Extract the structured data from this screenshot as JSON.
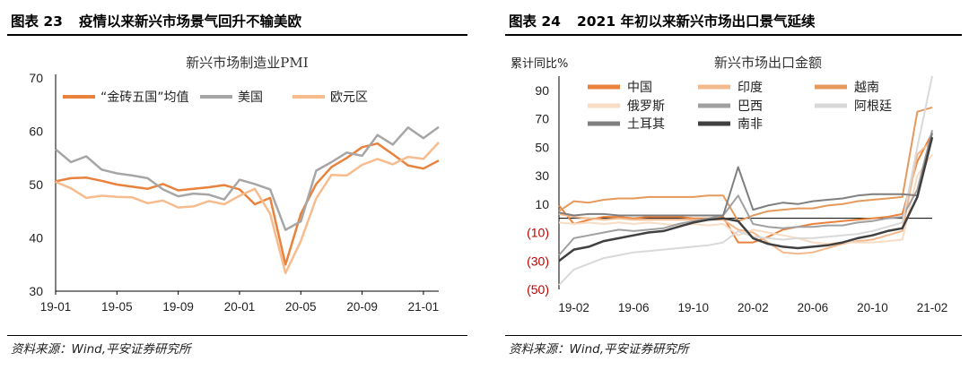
{
  "left": {
    "figure_no": "图表 23",
    "figure_title": "疫情以来新兴市场景气回升不输美欧",
    "source": "资料来源：Wind,平安证券研究所"
  },
  "right": {
    "figure_no": "图表 24",
    "figure_title": "2021 年初以来新兴市场出口景气延续",
    "source": "资料来源：Wind,平安证券研究所"
  },
  "chart_data": [
    {
      "type": "line",
      "title": "新兴市场制造业PMI",
      "ylim": [
        30,
        70
      ],
      "yticks": [
        "30",
        "40",
        "50",
        "60",
        "70"
      ],
      "xticks": [
        "19-01",
        "19-05",
        "19-09",
        "20-01",
        "20-05",
        "20-09",
        "21-01"
      ],
      "x": [
        "19-01",
        "19-02",
        "19-03",
        "19-04",
        "19-05",
        "19-06",
        "19-07",
        "19-08",
        "19-09",
        "19-10",
        "19-11",
        "19-12",
        "20-01",
        "20-02",
        "20-03",
        "20-04",
        "20-05",
        "20-06",
        "20-07",
        "20-08",
        "20-09",
        "20-10",
        "20-11",
        "20-12",
        "21-01",
        "21-02"
      ],
      "legend": "top",
      "series": [
        {
          "name": "“金砖五国”均值",
          "color": "#e8823c",
          "width": 2.5,
          "values": [
            50.6,
            51.2,
            51.3,
            50.7,
            50.0,
            49.6,
            49.2,
            50.1,
            48.9,
            49.2,
            49.5,
            49.9,
            49.1,
            46.3,
            47.5,
            35.0,
            44.5,
            50.1,
            53.3,
            55.0,
            57.0,
            57.7,
            55.7,
            53.6,
            53.0,
            54.5
          ]
        },
        {
          "name": "美国",
          "color": "#a6a6a6",
          "width": 2.5,
          "values": [
            56.6,
            54.2,
            55.3,
            52.8,
            52.1,
            51.7,
            51.2,
            49.1,
            47.8,
            48.3,
            48.1,
            47.2,
            50.9,
            50.1,
            49.1,
            41.5,
            43.1,
            52.6,
            54.2,
            56.0,
            55.4,
            59.3,
            57.5,
            60.7,
            58.7,
            60.8
          ]
        },
        {
          "name": "欧元区",
          "color": "#f7bc8e",
          "width": 2.5,
          "values": [
            50.5,
            49.3,
            47.5,
            47.9,
            47.7,
            47.6,
            46.5,
            47.0,
            45.7,
            45.9,
            46.9,
            46.3,
            47.9,
            49.2,
            44.5,
            33.4,
            39.4,
            47.4,
            51.8,
            51.7,
            53.7,
            54.8,
            53.8,
            55.2,
            54.8,
            57.9
          ]
        }
      ]
    },
    {
      "type": "line",
      "title": "新兴市场出口金额",
      "ylabel": "累计同比%",
      "ylim": [
        -50,
        100
      ],
      "yticks": [
        "(50)",
        "(30)",
        "(10)",
        "10",
        "30",
        "50",
        "70",
        "90"
      ],
      "ytick_values": [
        -50,
        -30,
        -10,
        10,
        30,
        50,
        70,
        90
      ],
      "negative_tick_color": "#c00000",
      "xticks": [
        "19-02",
        "19-06",
        "19-10",
        "20-02",
        "20-06",
        "20-10",
        "21-02"
      ],
      "x": [
        "19-01",
        "19-02",
        "19-03",
        "19-04",
        "19-05",
        "19-06",
        "19-07",
        "19-08",
        "19-09",
        "19-10",
        "19-11",
        "19-12",
        "20-01",
        "20-02",
        "20-03",
        "20-04",
        "20-05",
        "20-06",
        "20-07",
        "20-08",
        "20-09",
        "20-10",
        "20-11",
        "20-12",
        "21-01",
        "21-02"
      ],
      "legend": "top",
      "series": [
        {
          "name": "中国",
          "color": "#e8823c",
          "width": 2,
          "values": [
            9,
            -4,
            -1,
            1,
            1,
            0,
            1,
            1,
            1,
            0,
            0,
            1,
            -17,
            -17,
            -13,
            -8,
            -6,
            -4,
            -3,
            -2,
            -1,
            0,
            1,
            3,
            40,
            60
          ]
        },
        {
          "name": "印度",
          "color": "#f3b98d",
          "width": 2,
          "values": [
            3,
            1,
            0,
            -1,
            0,
            -1,
            -1,
            -1,
            -1,
            -1,
            -1,
            -1,
            -8,
            -10,
            -17,
            -24,
            -25,
            -24,
            -21,
            -18,
            -16,
            -15,
            -12,
            -9,
            45,
            55
          ]
        },
        {
          "name": "越南",
          "color": "#e59a5b",
          "width": 2,
          "values": [
            5,
            12,
            11,
            13,
            14,
            14,
            15,
            15,
            15,
            15,
            16,
            16,
            -2,
            2,
            5,
            6,
            7,
            7,
            9,
            10,
            12,
            13,
            14,
            15,
            75,
            78
          ]
        },
        {
          "name": "俄罗斯",
          "color": "#f8dcc4",
          "width": 2,
          "values": [
            -3,
            -4,
            -3,
            -4,
            -3,
            -4,
            -3,
            -4,
            -5,
            -4,
            -5,
            -4,
            -12,
            -8,
            -10,
            -12,
            -14,
            -17,
            -18,
            -17,
            -17,
            -17,
            -16,
            -15,
            30,
            45
          ]
        },
        {
          "name": "巴西",
          "color": "#a0a0a0",
          "width": 2,
          "values": [
            -26,
            -14,
            -12,
            -10,
            -8,
            -9,
            -8,
            -7,
            -4,
            -2,
            0,
            2,
            16,
            -4,
            -6,
            -7,
            -6,
            -6,
            -5,
            -5,
            -3,
            -2,
            0,
            1,
            20,
            62
          ]
        },
        {
          "name": "阿根廷",
          "color": "#d9d9d9",
          "width": 2,
          "values": [
            -47,
            -36,
            -32,
            -28,
            -26,
            -24,
            -23,
            -22,
            -21,
            -20,
            -19,
            -17,
            -9,
            -13,
            -14,
            -15,
            -14,
            -14,
            -13,
            -12,
            -11,
            -9,
            -6,
            -3,
            50,
            100
          ]
        },
        {
          "name": "土耳其",
          "color": "#7f7f7f",
          "width": 2,
          "values": [
            4,
            2,
            3,
            3,
            2,
            2,
            2,
            2,
            2,
            2,
            2,
            2,
            36,
            6,
            9,
            11,
            10,
            12,
            13,
            14,
            16,
            17,
            17,
            17,
            16,
            60
          ]
        },
        {
          "name": "南非",
          "color": "#404040",
          "width": 2.5,
          "values": [
            -30,
            -22,
            -20,
            -16,
            -14,
            -12,
            -10,
            -9,
            -6,
            -3,
            -1,
            0,
            -2,
            -14,
            -18,
            -20,
            -21,
            -20,
            -19,
            -17,
            -14,
            -12,
            -9,
            -7,
            15,
            57
          ]
        }
      ]
    }
  ]
}
